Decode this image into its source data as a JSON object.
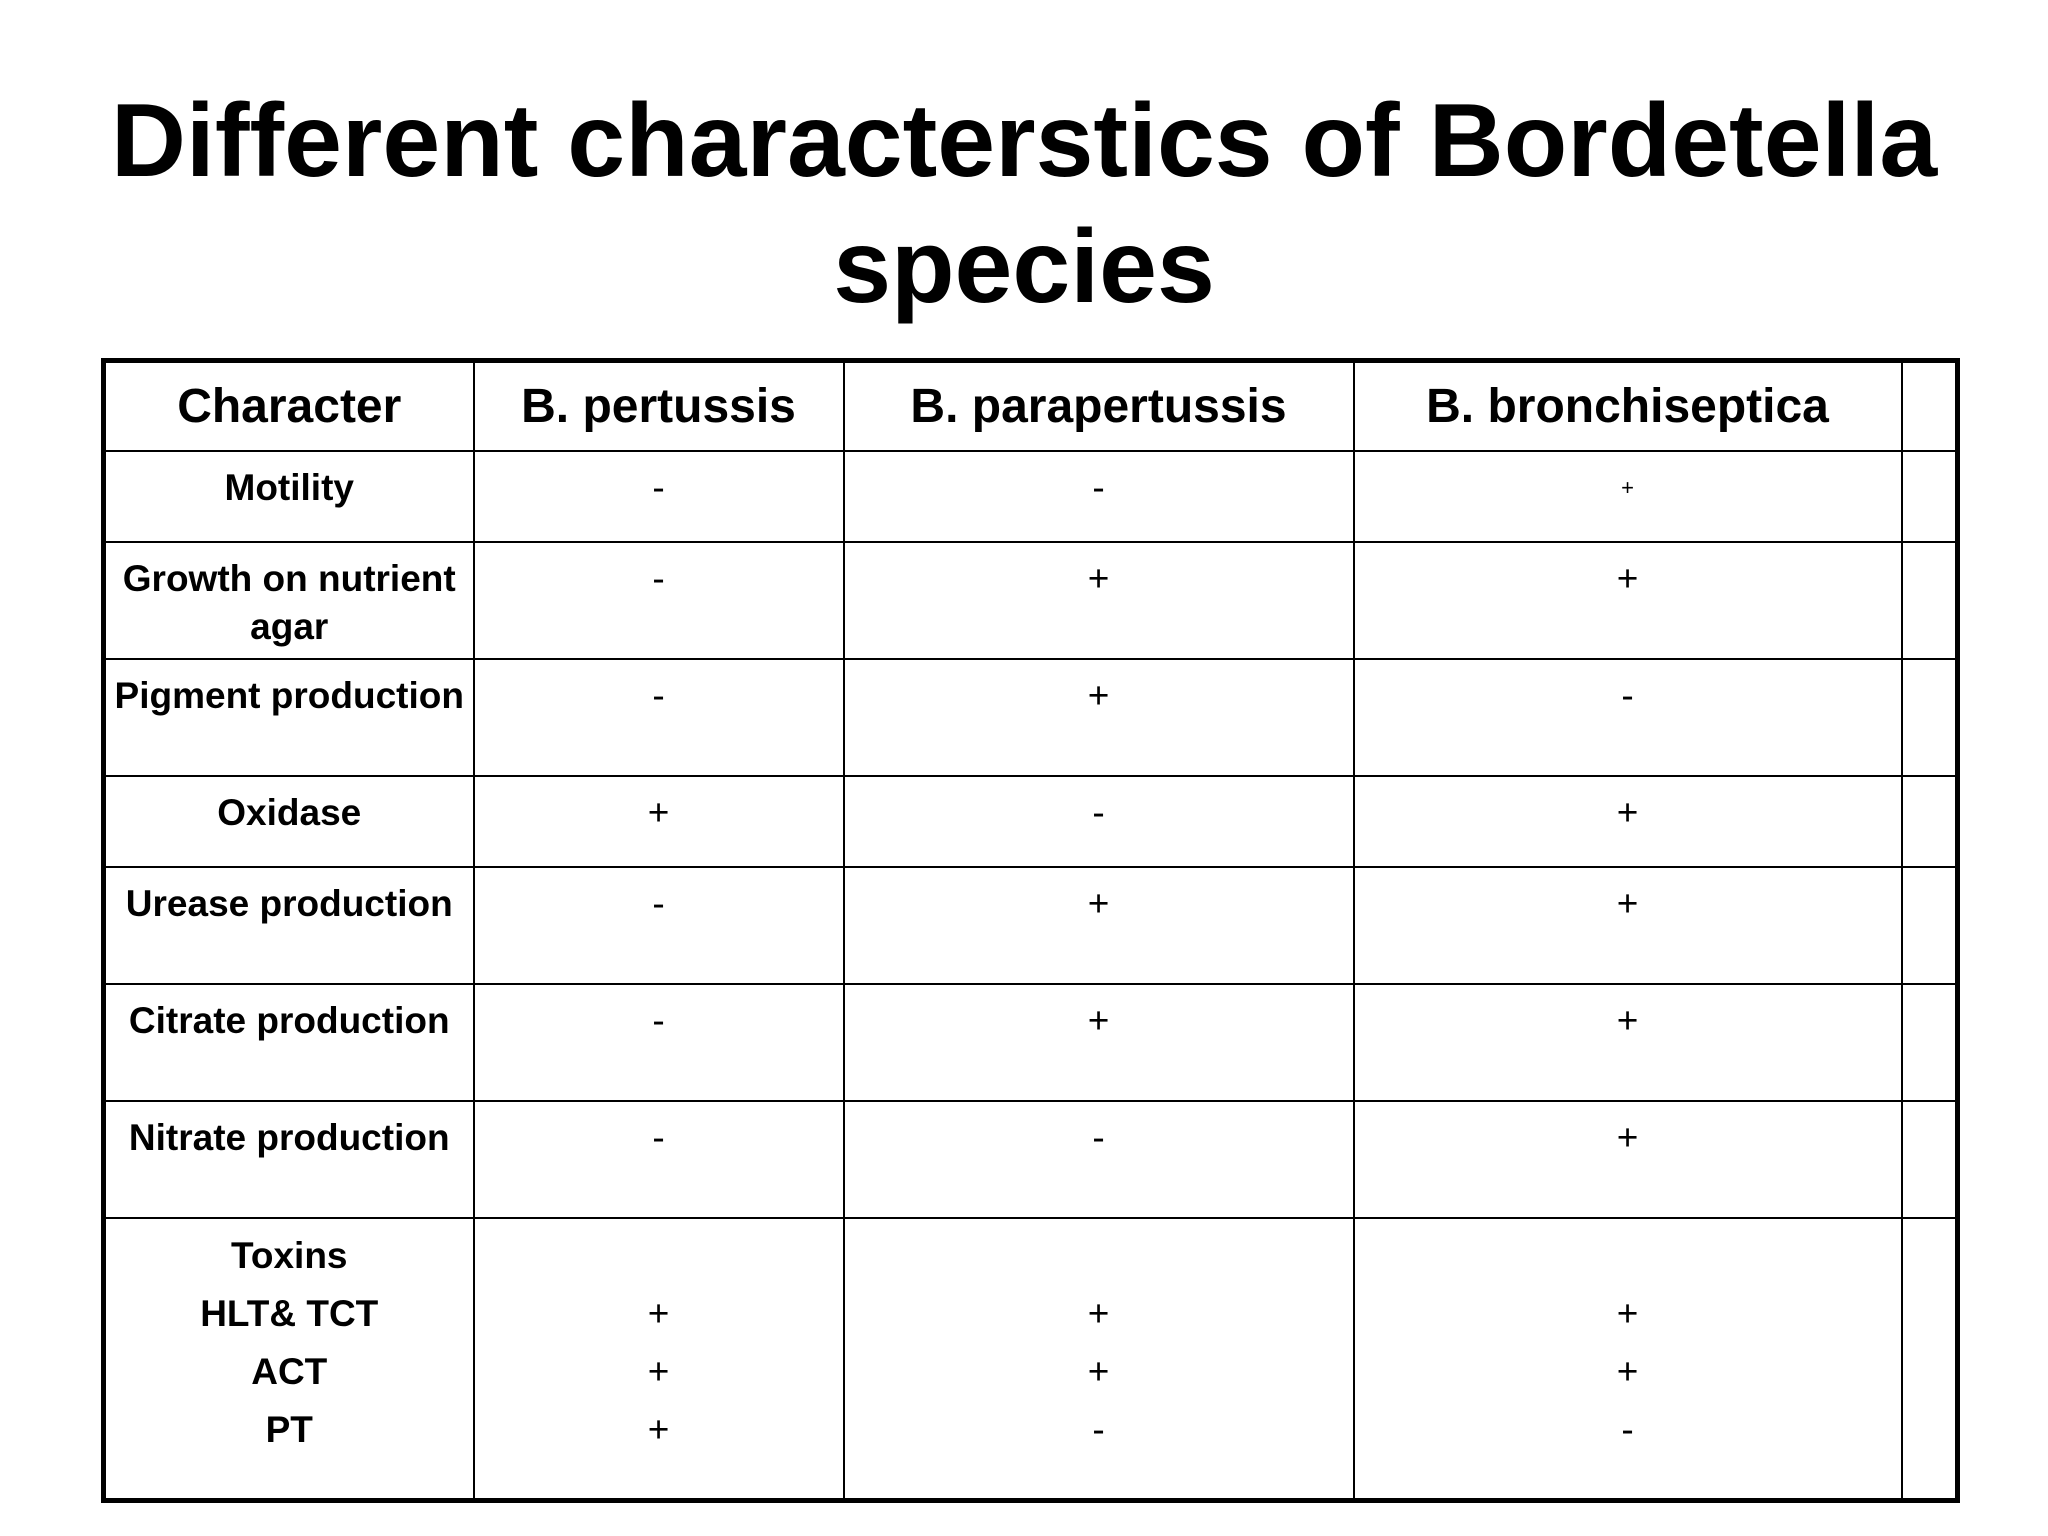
{
  "title": "Different characterstics of Bordetella species",
  "table": {
    "headers": [
      "Character",
      "B. pertussis",
      "B. parapertussis",
      "B. bronchiseptica",
      ""
    ],
    "rows": [
      {
        "label": "Motility",
        "pertussis": "-",
        "parapertussis": "-",
        "bronchiseptica": "+"
      },
      {
        "label": "Growth on nutrient agar",
        "pertussis": "-",
        "parapertussis": "+",
        "bronchiseptica": "+"
      },
      {
        "label": "Pigment production",
        "pertussis": "-",
        "parapertussis": "+",
        "bronchiseptica": "-"
      },
      {
        "label": "Oxidase",
        "pertussis": "+",
        "parapertussis": "-",
        "bronchiseptica": "+"
      },
      {
        "label": "Urease production",
        "pertussis": "-",
        "parapertussis": "+",
        "bronchiseptica": "+"
      },
      {
        "label": "Citrate production",
        "pertussis": "-",
        "parapertussis": "+",
        "bronchiseptica": "+"
      },
      {
        "label": "Nitrate production",
        "pertussis": "-",
        "parapertussis": "-",
        "bronchiseptica": "+"
      }
    ],
    "toxins": {
      "label": "Toxins",
      "items": [
        {
          "label": "HLT& TCT",
          "pertussis": "+",
          "parapertussis": "+",
          "bronchiseptica": "+"
        },
        {
          "label": "ACT",
          "pertussis": "+",
          "parapertussis": "+",
          "bronchiseptica": "+"
        },
        {
          "label": "PT",
          "pertussis": "+",
          "parapertussis": "-",
          "bronchiseptica": "-"
        }
      ]
    }
  }
}
